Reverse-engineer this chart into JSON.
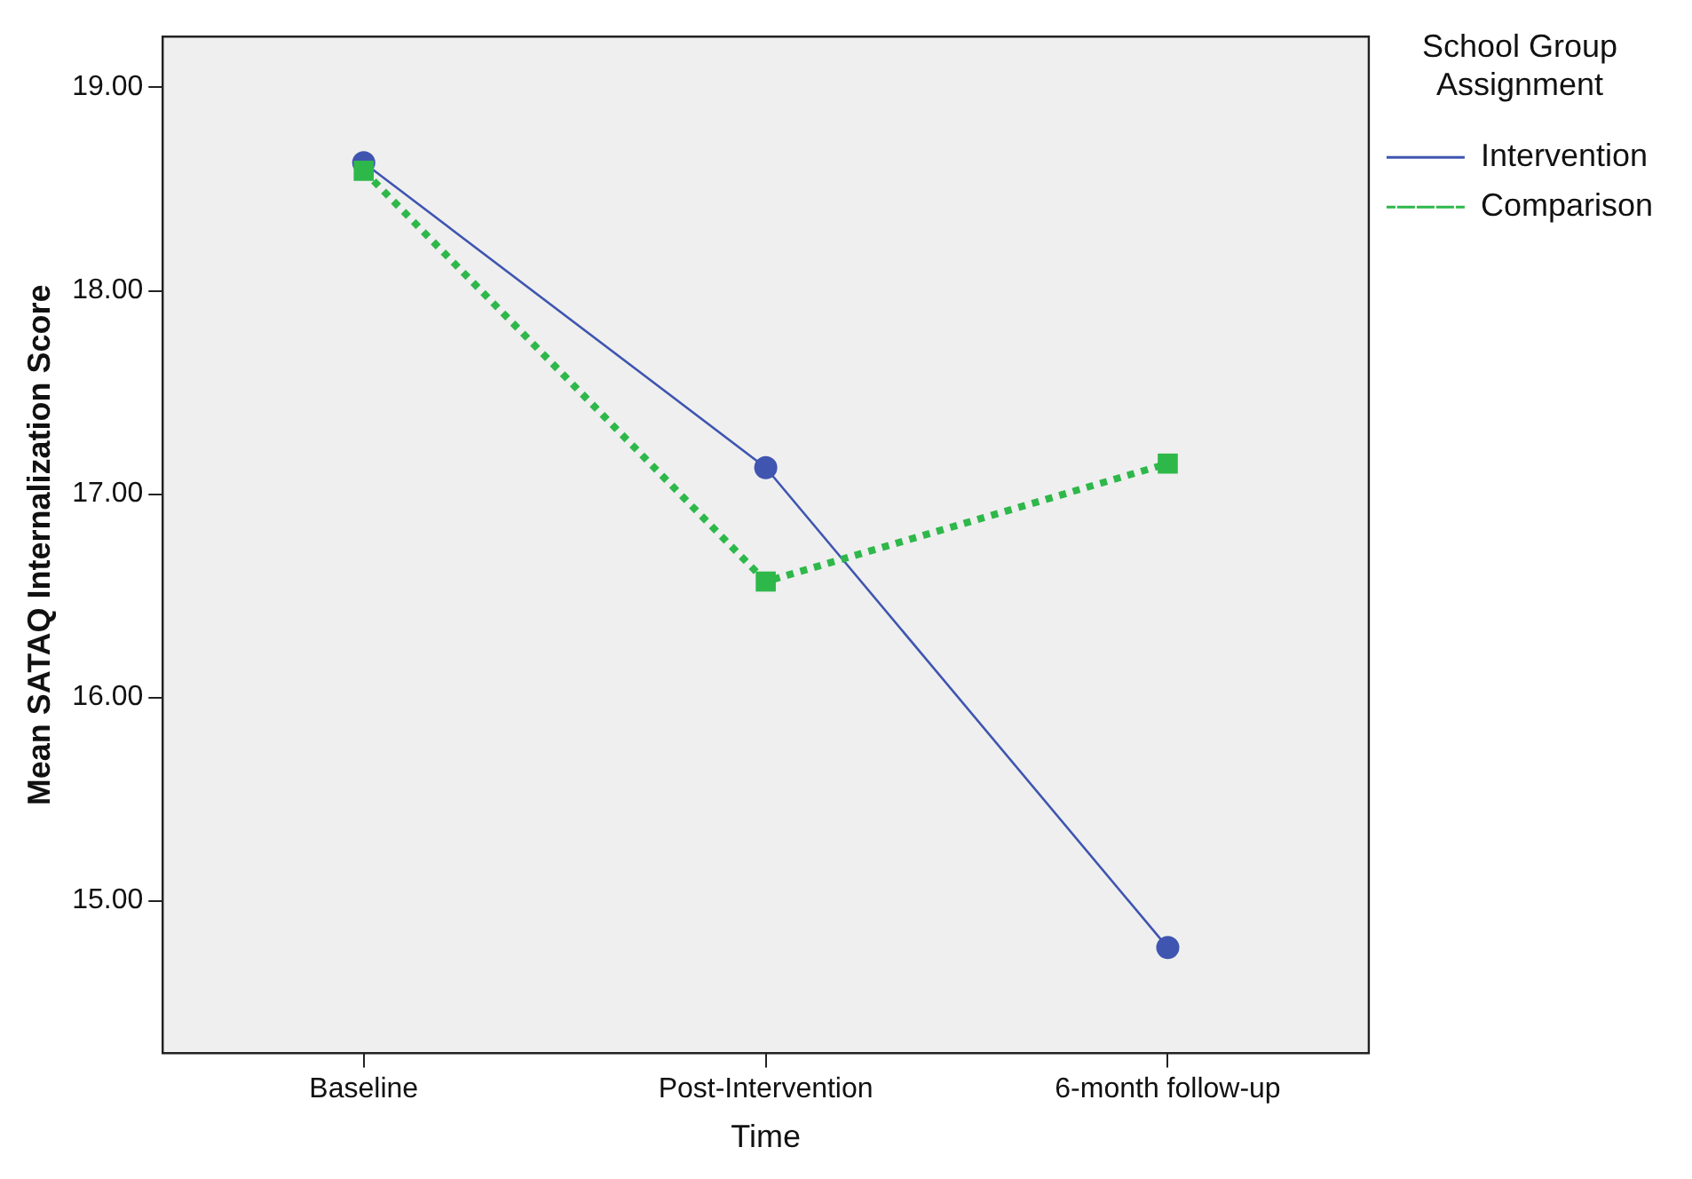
{
  "chart_data": {
    "type": "line",
    "xlabel": "Time",
    "ylabel": "Mean SATAQ Internalization Score",
    "legend_title": "School Group Assignment",
    "categories": [
      "Baseline",
      "Post-Intervention",
      "6-month follow-up"
    ],
    "series": [
      {
        "name": "Intervention",
        "color": "#3f55b0",
        "values": [
          18.63,
          17.13,
          14.77
        ],
        "marker": "circle",
        "line_style": "solid"
      },
      {
        "name": "Comparison",
        "color": "#2eb84a",
        "values": [
          18.59,
          16.57,
          17.15
        ],
        "marker": "square",
        "line_style": "dotted"
      }
    ],
    "ylim": [
      14.25,
      19.25
    ],
    "yticks": [
      {
        "value": 15,
        "label": "15.00"
      },
      {
        "value": 16,
        "label": "16.00"
      },
      {
        "value": 17,
        "label": "17.00"
      },
      {
        "value": 18,
        "label": "18.00"
      },
      {
        "value": 19,
        "label": "19.00"
      }
    ],
    "grid": false,
    "legend": "top right"
  }
}
